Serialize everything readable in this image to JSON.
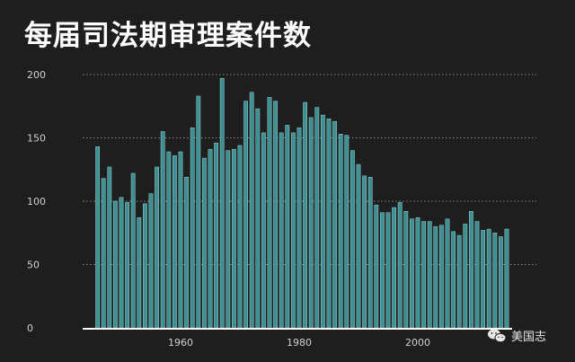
{
  "title": "每届司法期审理案件数",
  "watermark": "美国志",
  "colors": {
    "background": "#1e1e1e",
    "bar": "#3f8e92",
    "bar_edge": "#8fd0d2",
    "grid": "#8a8a8a",
    "axis": "#ffffff",
    "text": "#cfcfcf"
  },
  "chart_data": {
    "type": "bar",
    "title": "每届司法期审理案件数",
    "xlabel": "",
    "ylabel": "",
    "ylim": [
      0,
      200
    ],
    "yticks": [
      0,
      50,
      100,
      150,
      200
    ],
    "xticks": [
      1960,
      1980,
      2000
    ],
    "grid": "horizontal dotted",
    "x": [
      1946,
      1947,
      1948,
      1949,
      1950,
      1951,
      1952,
      1953,
      1954,
      1955,
      1956,
      1957,
      1958,
      1959,
      1960,
      1961,
      1962,
      1963,
      1964,
      1965,
      1966,
      1967,
      1968,
      1969,
      1970,
      1971,
      1972,
      1973,
      1974,
      1975,
      1976,
      1977,
      1978,
      1979,
      1980,
      1981,
      1982,
      1983,
      1984,
      1985,
      1986,
      1987,
      1988,
      1989,
      1990,
      1991,
      1992,
      1993,
      1994,
      1995,
      1996,
      1997,
      1998,
      1999,
      2000,
      2001,
      2002,
      2003,
      2004,
      2005,
      2006,
      2007,
      2008,
      2009,
      2010,
      2011,
      2012,
      2013,
      2014,
      2015,
      2016,
      2017,
      2018
    ],
    "values": [
      143,
      118,
      127,
      100,
      103,
      99,
      122,
      87,
      98,
      106,
      127,
      155,
      139,
      136,
      139,
      119,
      158,
      183,
      134,
      141,
      146,
      197,
      140,
      141,
      144,
      179,
      186,
      173,
      154,
      182,
      179,
      154,
      160,
      154,
      158,
      178,
      166,
      174,
      168,
      165,
      163,
      153,
      152,
      140,
      129,
      120,
      119,
      97,
      91,
      91,
      95,
      99,
      92,
      86,
      87,
      84,
      84,
      80,
      81,
      86,
      76,
      73,
      82,
      92,
      84,
      77,
      78,
      75,
      72,
      78,
      0,
      0,
      0
    ]
  }
}
